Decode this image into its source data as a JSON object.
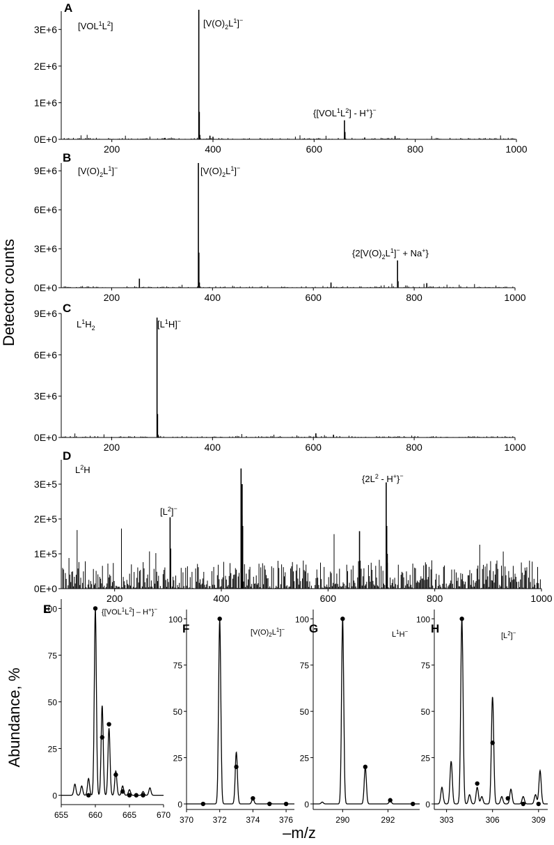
{
  "figure": {
    "ylabel_top": "Detector counts",
    "ylabel_bottom": "Abundance, %",
    "xlabel": "–m/z"
  },
  "chart_data": [
    {
      "panel": "A",
      "type": "line",
      "sample_label": "[VOL1L2]",
      "xlim": [
        100,
        1000
      ],
      "x_ticks": [
        200,
        400,
        600,
        800,
        1000
      ],
      "ylim": [
        0,
        3500000
      ],
      "y_ticks": [
        0,
        1000000,
        2000000,
        3000000
      ],
      "y_tick_labels": [
        "0E+0",
        "1E+6",
        "2E+6",
        "3E+6"
      ],
      "peaks": [
        {
          "x": 372,
          "y": 3550000
        },
        {
          "x": 373,
          "y": 750000
        },
        {
          "x": 374,
          "y": 120000
        },
        {
          "x": 394,
          "y": 100000
        },
        {
          "x": 400,
          "y": 70000
        },
        {
          "x": 660,
          "y": 520000
        },
        {
          "x": 661,
          "y": 200000
        },
        {
          "x": 305,
          "y": 40000
        },
        {
          "x": 760,
          "y": 90000
        },
        {
          "x": 700,
          "y": 50000
        }
      ],
      "annotations": [
        {
          "text": "[V(O)2L1]−",
          "x": 372
        },
        {
          "text": "{[VOL1L2] - H+}−",
          "x": 660
        }
      ]
    },
    {
      "panel": "B",
      "type": "line",
      "sample_label": "[V(O)2L1]−",
      "xlim": [
        100,
        1000
      ],
      "x_ticks": [
        200,
        400,
        600,
        800,
        1000
      ],
      "ylim": [
        0,
        9600000
      ],
      "y_ticks": [
        0,
        3000000,
        6000000,
        9000000
      ],
      "y_tick_labels": [
        "0E+0",
        "3E+6",
        "6E+6",
        "9E+6"
      ],
      "peaks": [
        {
          "x": 372,
          "y": 9600000
        },
        {
          "x": 373,
          "y": 2700000
        },
        {
          "x": 374,
          "y": 400000
        },
        {
          "x": 255,
          "y": 700000
        },
        {
          "x": 767,
          "y": 2100000
        },
        {
          "x": 768,
          "y": 500000
        },
        {
          "x": 635,
          "y": 400000
        },
        {
          "x": 825,
          "y": 350000
        }
      ],
      "annotations": [
        {
          "text": "[V(O)2L1]−",
          "x": 372
        },
        {
          "text": "{2[V(O)2L1]− + Na+}−",
          "x": 767
        }
      ]
    },
    {
      "panel": "C",
      "type": "line",
      "sample_label": "L1H2",
      "xlim": [
        100,
        1000
      ],
      "x_ticks": [
        200,
        400,
        600,
        800,
        1000
      ],
      "ylim": [
        0,
        9000000
      ],
      "y_ticks": [
        0,
        3000000,
        6000000,
        9000000
      ],
      "y_tick_labels": [
        "0E+0",
        "3E+6",
        "6E+6",
        "9E+6"
      ],
      "peaks": [
        {
          "x": 290,
          "y": 8700000
        },
        {
          "x": 291,
          "y": 1700000
        },
        {
          "x": 292,
          "y": 200000
        },
        {
          "x": 605,
          "y": 300000
        },
        {
          "x": 640,
          "y": 200000
        }
      ],
      "annotations": [
        {
          "text": "[L1H]−",
          "x": 290
        }
      ]
    },
    {
      "panel": "D",
      "type": "line",
      "sample_label": "L2H",
      "xlim": [
        100,
        1000
      ],
      "x_ticks": [
        200,
        400,
        600,
        800,
        1000
      ],
      "ylim": [
        0,
        370000
      ],
      "y_ticks": [
        0,
        100000,
        200000,
        300000
      ],
      "y_tick_labels": [
        "0E+0",
        "1E+5",
        "2E+5",
        "3E+5"
      ],
      "peaks": [
        {
          "x": 304,
          "y": 205000
        },
        {
          "x": 305,
          "y": 115000
        },
        {
          "x": 437,
          "y": 345000
        },
        {
          "x": 438,
          "y": 210000
        },
        {
          "x": 439,
          "y": 300000
        },
        {
          "x": 440,
          "y": 180000
        },
        {
          "x": 659,
          "y": 165000
        },
        {
          "x": 709,
          "y": 305000
        },
        {
          "x": 710,
          "y": 180000
        },
        {
          "x": 711,
          "y": 100000
        }
      ],
      "annotations": [
        {
          "text": "[L2]−",
          "x": 304
        },
        {
          "text": "{2L2 - H+}−",
          "x": 709
        }
      ]
    },
    {
      "panel": "E",
      "type": "line",
      "label": "{[VOL1L2] – H+}−",
      "xlim": [
        655,
        670
      ],
      "x_ticks": [
        655,
        660,
        665,
        670
      ],
      "ylim": [
        -5,
        105
      ],
      "y_ticks": [
        0,
        25,
        50,
        75,
        100
      ],
      "peaks": [
        {
          "x": 657.0,
          "y": 6
        },
        {
          "x": 658.0,
          "y": 5
        },
        {
          "x": 659.0,
          "y": 9
        },
        {
          "x": 660.0,
          "y": 100
        },
        {
          "x": 661.0,
          "y": 48
        },
        {
          "x": 662.0,
          "y": 36
        },
        {
          "x": 663.0,
          "y": 13
        },
        {
          "x": 664.0,
          "y": 5
        },
        {
          "x": 665.0,
          "y": 3
        },
        {
          "x": 667.0,
          "y": 2
        },
        {
          "x": 668.0,
          "y": 4
        }
      ],
      "theoretical": [
        {
          "x": 660,
          "y": 100
        },
        {
          "x": 661,
          "y": 31
        },
        {
          "x": 662,
          "y": 38
        },
        {
          "x": 663,
          "y": 11
        },
        {
          "x": 664,
          "y": 2
        },
        {
          "x": 665,
          "y": 0
        },
        {
          "x": 666,
          "y": 0
        },
        {
          "x": 667,
          "y": 0
        },
        {
          "x": 659,
          "y": 0
        }
      ]
    },
    {
      "panel": "F",
      "type": "line",
      "label": "[V(O)2L1]−",
      "xlim": [
        370,
        376.5
      ],
      "x_ticks": [
        370,
        372,
        374,
        376
      ],
      "ylim": [
        -3,
        105
      ],
      "y_ticks": [
        0,
        25,
        50,
        75,
        100
      ],
      "peaks": [
        {
          "x": 372,
          "y": 100
        },
        {
          "x": 373,
          "y": 28
        },
        {
          "x": 374,
          "y": 3
        },
        {
          "x": 375,
          "y": 1
        }
      ],
      "theoretical": [
        {
          "x": 371,
          "y": 0
        },
        {
          "x": 372,
          "y": 100
        },
        {
          "x": 373,
          "y": 20
        },
        {
          "x": 374,
          "y": 3
        },
        {
          "x": 375,
          "y": 0
        },
        {
          "x": 376,
          "y": 0
        }
      ]
    },
    {
      "panel": "G",
      "type": "line",
      "label": "L1H−",
      "xlim": [
        288.7,
        293.4
      ],
      "x_ticks": [
        290,
        292
      ],
      "ylim": [
        -3,
        105
      ],
      "y_ticks": [
        0,
        25,
        50,
        75,
        100
      ],
      "peaks": [
        {
          "x": 289.1,
          "y": 1
        },
        {
          "x": 290,
          "y": 100
        },
        {
          "x": 291,
          "y": 20
        },
        {
          "x": 292.1,
          "y": 2
        }
      ],
      "theoretical": [
        {
          "x": 290,
          "y": 100
        },
        {
          "x": 291,
          "y": 20
        },
        {
          "x": 292.1,
          "y": 2
        },
        {
          "x": 293.1,
          "y": 0
        }
      ]
    },
    {
      "panel": "H",
      "type": "line",
      "label": "[L2]−",
      "xlim": [
        302.2,
        309.6
      ],
      "x_ticks": [
        303,
        306,
        309
      ],
      "ylim": [
        -3,
        105
      ],
      "y_ticks": [
        0,
        25,
        50,
        75,
        100
      ],
      "peaks": [
        {
          "x": 302.7,
          "y": 9
        },
        {
          "x": 303.3,
          "y": 23
        },
        {
          "x": 304.0,
          "y": 100
        },
        {
          "x": 304.5,
          "y": 5
        },
        {
          "x": 305.0,
          "y": 9
        },
        {
          "x": 305.3,
          "y": 4
        },
        {
          "x": 306.0,
          "y": 58
        },
        {
          "x": 306.6,
          "y": 4
        },
        {
          "x": 307.2,
          "y": 8
        },
        {
          "x": 308.0,
          "y": 4
        },
        {
          "x": 308.8,
          "y": 5
        },
        {
          "x": 309.1,
          "y": 18
        }
      ],
      "theoretical": [
        {
          "x": 304,
          "y": 100
        },
        {
          "x": 305,
          "y": 11
        },
        {
          "x": 306,
          "y": 33
        },
        {
          "x": 307,
          "y": 3
        },
        {
          "x": 308,
          "y": 0
        },
        {
          "x": 309,
          "y": 0
        }
      ]
    }
  ]
}
